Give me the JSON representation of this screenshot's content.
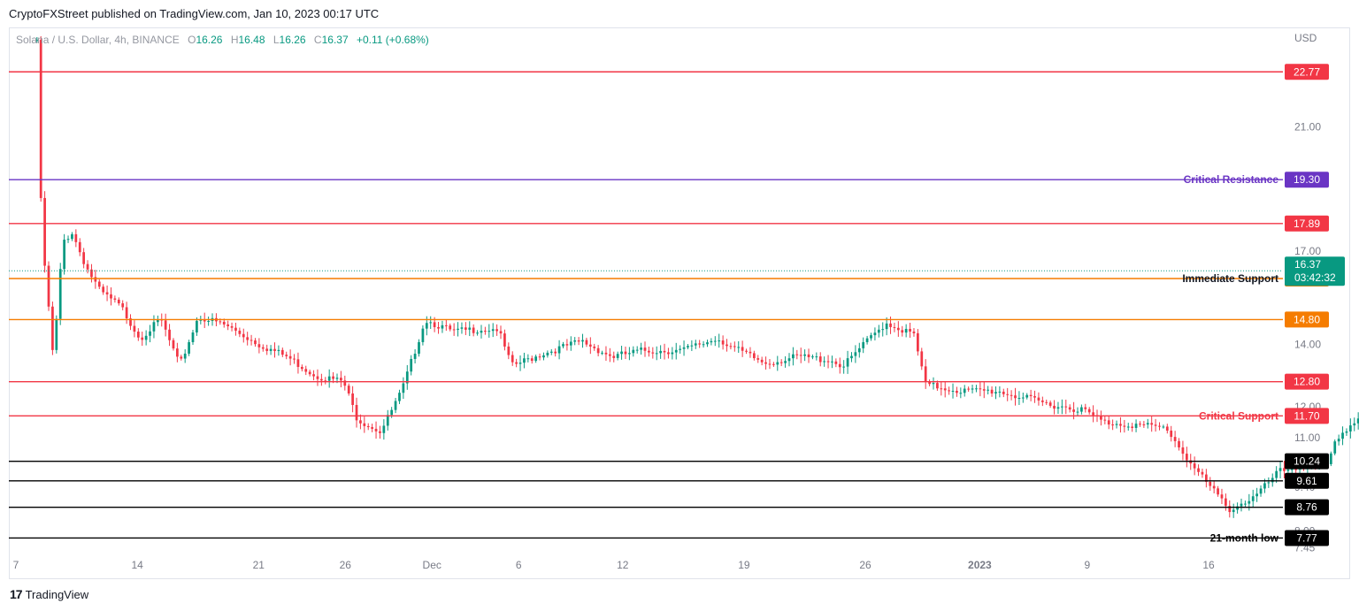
{
  "header": {
    "published_text": "CryptoFXStreet published on TradingView.com, Jan 10, 2023 00:17 UTC"
  },
  "legend": {
    "symbol": "Solana / U.S. Dollar, 4h, BINANCE",
    "open_label": "O",
    "open": "16.26",
    "high_label": "H",
    "high": "16.48",
    "low_label": "L",
    "low": "16.26",
    "close_label": "C",
    "close": "16.37",
    "change": "+0.11 (+0.68%)"
  },
  "footer": {
    "logo_mark": "17",
    "logo_text": "TradingView"
  },
  "colors": {
    "up": "#089981",
    "down": "#f23645",
    "red_line": "#f23645",
    "orange_line": "#f57c00",
    "purple_line": "#6a35c4",
    "black_line": "#000000",
    "current_price": "#089981"
  },
  "chart_data": {
    "type": "candlestick",
    "symbol": "Solana / U.S. Dollar",
    "interval": "4h",
    "exchange": "BINANCE",
    "currency": "USD",
    "ylim": [
      7.3,
      24.2
    ],
    "y_ticks": [
      "21.00",
      "19.30",
      "17.00",
      "14.00",
      "12.80",
      "12.00",
      "11.00",
      "9.40",
      "8.00",
      "7.45"
    ],
    "x_ticks": [
      "7",
      "14",
      "21",
      "26",
      "Dec",
      "6",
      "12",
      "19",
      "26",
      "2023",
      "9",
      "16"
    ],
    "x_range_days": [
      7,
      58
    ],
    "price_path": [
      [
        7.9,
        23.8
      ],
      [
        8.0,
        19.5
      ],
      [
        8.2,
        16.8
      ],
      [
        8.6,
        13.5
      ],
      [
        9.0,
        17.3
      ],
      [
        9.4,
        17.6
      ],
      [
        10.0,
        16.5
      ],
      [
        10.6,
        15.7
      ],
      [
        11.5,
        15.2
      ],
      [
        12.3,
        14.2
      ],
      [
        13.2,
        14.8
      ],
      [
        14.0,
        13.3
      ],
      [
        14.8,
        14.9
      ],
      [
        16.0,
        14.6
      ],
      [
        17.4,
        14.0
      ],
      [
        18.6,
        13.6
      ],
      [
        19.8,
        13.0
      ],
      [
        21.0,
        12.8
      ],
      [
        21.6,
        11.6
      ],
      [
        22.6,
        11.2
      ],
      [
        23.5,
        12.5
      ],
      [
        24.5,
        14.8
      ],
      [
        25.7,
        14.4
      ],
      [
        26.8,
        14.5
      ],
      [
        27.6,
        14.5
      ],
      [
        28.2,
        13.3
      ],
      [
        29.5,
        13.7
      ],
      [
        31.2,
        14.1
      ],
      [
        32.5,
        13.6
      ],
      [
        33.8,
        13.8
      ],
      [
        35.5,
        13.8
      ],
      [
        37.0,
        14.2
      ],
      [
        37.9,
        13.8
      ],
      [
        39.0,
        13.4
      ],
      [
        40.5,
        13.6
      ],
      [
        41.8,
        13.5
      ],
      [
        42.4,
        13.3
      ],
      [
        43.0,
        13.8
      ],
      [
        44.2,
        14.7
      ],
      [
        45.4,
        14.3
      ],
      [
        45.9,
        12.7
      ],
      [
        47.5,
        12.5
      ],
      [
        49.0,
        12.5
      ],
      [
        51.0,
        12.1
      ],
      [
        52.6,
        11.9
      ],
      [
        53.5,
        11.5
      ],
      [
        55.0,
        11.4
      ],
      [
        56.2,
        11.3
      ],
      [
        57.3,
        10.1
      ],
      [
        58.3,
        9.2
      ],
      [
        58.9,
        8.7
      ],
      [
        60.0,
        9.1
      ],
      [
        61.0,
        9.9
      ],
      [
        62.0,
        10.1
      ],
      [
        63.1,
        10.1
      ],
      [
        63.5,
        11.0
      ],
      [
        64.5,
        11.7
      ],
      [
        65.8,
        13.0
      ],
      [
        66.5,
        14.1
      ],
      [
        67.6,
        13.4
      ],
      [
        69.5,
        13.2
      ],
      [
        71.5,
        13.3
      ],
      [
        72.3,
        13.6
      ],
      [
        72.9,
        14.6
      ],
      [
        73.4,
        16.5
      ],
      [
        73.9,
        16.9
      ],
      [
        74.2,
        16.4
      ]
    ],
    "horizontal_levels": [
      {
        "value": 22.77,
        "label": "22.77",
        "color": "#f23645",
        "annotation": ""
      },
      {
        "value": 19.3,
        "label": "19.30",
        "color": "#6a35c4",
        "annotation": "Critical Resistance"
      },
      {
        "value": 17.89,
        "label": "17.89",
        "color": "#f23645",
        "annotation": ""
      },
      {
        "value": 16.12,
        "label": "16.12",
        "color": "#f57c00",
        "annotation": "Immediate Support"
      },
      {
        "value": 14.8,
        "label": "14.80",
        "color": "#f57c00",
        "annotation": ""
      },
      {
        "value": 12.8,
        "label": "12.80",
        "color": "#f23645",
        "annotation": ""
      },
      {
        "value": 11.7,
        "label": "11.70",
        "color": "#f23645",
        "annotation": "Critical Support"
      },
      {
        "value": 10.24,
        "label": "10.24",
        "color": "#000000",
        "annotation": ""
      },
      {
        "value": 9.61,
        "label": "9.61",
        "color": "#000000",
        "annotation": ""
      },
      {
        "value": 8.76,
        "label": "8.76",
        "color": "#000000",
        "annotation": ""
      },
      {
        "value": 7.77,
        "label": "7.77",
        "color": "#000000",
        "annotation": "21-month low"
      }
    ],
    "current_price": {
      "value": 16.37,
      "label": "16.37",
      "countdown": "03:42:32"
    }
  }
}
